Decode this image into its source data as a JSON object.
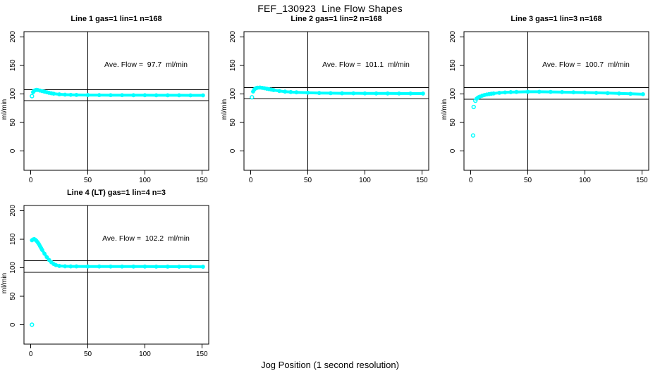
{
  "page": {
    "title": "FEF_130923  Line Flow Shapes",
    "xlabel": "Jog Position (1 second resolution)"
  },
  "colors": {
    "points": "#00FFFF",
    "axis": "#000000",
    "background": "#FFFFFF"
  },
  "chart_data": {
    "type": "scatter",
    "title": "FEF_130923  Line Flow Shapes",
    "xlabel": "Jog Position (1 second resolution)",
    "ylabel": "ml/min",
    "x_ticks": [
      0,
      50,
      100,
      150
    ],
    "y_ticks": [
      0,
      50,
      100,
      150,
      200
    ],
    "x_range": [
      -6,
      156
    ],
    "y_range": [
      -34,
      209
    ],
    "grid": false,
    "panels": [
      {
        "title": "Line 1 gas=1 lin=1 n=168",
        "line": 1,
        "gas": 1,
        "lin": 1,
        "n": 168,
        "avg_flow_ml_min": 97.7,
        "avg_label": "Ave. Flow =  97.7  ml/min",
        "ref_upper": 107.5,
        "ref_lower": 87.9,
        "ref_vertical_x": 50,
        "band": {
          "x": [
            2,
            3,
            4,
            5,
            6,
            8,
            10,
            12,
            14,
            16,
            18,
            20,
            25,
            30,
            35,
            40,
            50,
            60,
            70,
            80,
            90,
            100,
            110,
            120,
            130,
            140,
            151
          ],
          "y": [
            103,
            105.5,
            106.5,
            107,
            106.8,
            105.8,
            104.8,
            103.8,
            102.8,
            101.8,
            101,
            100.3,
            99.2,
            98.6,
            98.3,
            98.1,
            97.9,
            97.8,
            97.7,
            97.7,
            97.6,
            97.6,
            97.5,
            97.5,
            97.5,
            97.4,
            97.4
          ]
        },
        "lone_points": [
          [
            1,
            96
          ]
        ]
      },
      {
        "title": "Line 2 gas=1 lin=2 n=168",
        "line": 2,
        "gas": 1,
        "lin": 2,
        "n": 168,
        "avg_flow_ml_min": 101.1,
        "avg_label": "Ave. Flow =  101.1  ml/min",
        "ref_upper": 111.2,
        "ref_lower": 91.0,
        "ref_vertical_x": 50,
        "band": {
          "x": [
            2,
            3,
            4,
            5,
            6,
            8,
            10,
            12,
            14,
            16,
            18,
            20,
            25,
            30,
            35,
            40,
            50,
            60,
            70,
            80,
            90,
            100,
            110,
            120,
            130,
            140,
            151
          ],
          "y": [
            104,
            107.5,
            109.3,
            110.3,
            110.8,
            111,
            110.5,
            109.8,
            109,
            108.2,
            107.4,
            106.6,
            105,
            103.9,
            103.2,
            102.7,
            102,
            101.5,
            101.2,
            101,
            100.9,
            100.8,
            100.7,
            100.7,
            100.6,
            100.6,
            100.5
          ]
        },
        "lone_points": [
          [
            1,
            94
          ]
        ]
      },
      {
        "title": "Line 3 gas=1 lin=3 n=168",
        "line": 3,
        "gas": 1,
        "lin": 3,
        "n": 168,
        "avg_flow_ml_min": 100.7,
        "avg_label": "Ave. Flow =  100.7  ml/min",
        "ref_upper": 110.8,
        "ref_lower": 90.6,
        "ref_vertical_x": 50,
        "band": {
          "x": [
            5,
            6,
            7,
            8,
            10,
            12,
            14,
            16,
            18,
            20,
            25,
            30,
            35,
            40,
            50,
            60,
            70,
            80,
            90,
            100,
            110,
            120,
            130,
            140,
            151
          ],
          "y": [
            91.5,
            93,
            94.2,
            95.2,
            96.8,
            98,
            98.9,
            99.6,
            100.2,
            100.7,
            101.8,
            102.5,
            103,
            103.3,
            103.6,
            103.6,
            103.4,
            103.1,
            102.7,
            102.3,
            101.8,
            101.3,
            100.7,
            100.1,
            99.4
          ]
        },
        "lone_points": [
          [
            2,
            27
          ],
          [
            2.5,
            77
          ],
          [
            4,
            88
          ]
        ]
      },
      {
        "title": "Line 4 (LT) gas=1 lin=4 n=3",
        "line": 4,
        "gas": 1,
        "lin": 4,
        "n": 3,
        "avg_flow_ml_min": 102.2,
        "avg_label": "Ave. Flow =  102.2  ml/min",
        "ref_upper": 112.4,
        "ref_lower": 92.0,
        "ref_vertical_x": 50,
        "band": {
          "x": [
            1,
            2,
            3,
            4,
            5,
            6,
            7,
            8,
            9,
            10,
            12,
            14,
            16,
            18,
            20,
            22,
            25,
            30,
            35,
            40,
            50,
            60,
            70,
            80,
            90,
            100,
            110,
            120,
            130,
            140,
            151
          ],
          "y": [
            148,
            149.5,
            150,
            148.8,
            147,
            144.5,
            141.5,
            138,
            134.5,
            131,
            124.5,
            118.5,
            113.5,
            109.5,
            106.5,
            104.5,
            103,
            102.4,
            102.2,
            102.2,
            102.1,
            102.1,
            102,
            102,
            101.9,
            101.9,
            101.8,
            101.8,
            101.7,
            101.7,
            101.6
          ]
        },
        "lone_points": [
          [
            1,
            0
          ]
        ]
      }
    ]
  }
}
